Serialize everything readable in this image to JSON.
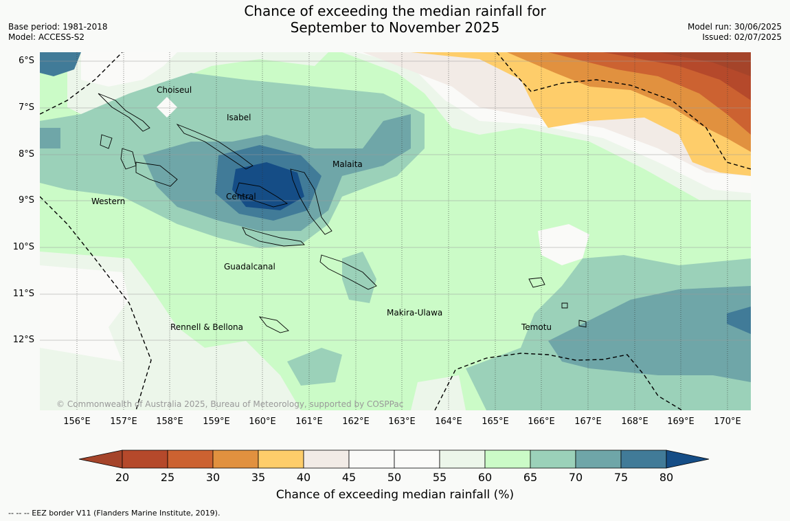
{
  "title": {
    "line1": "Chance of exceeding the median rainfall for",
    "line2": "September to November 2025"
  },
  "meta_left": {
    "base_period": "Base period: 1981-2018",
    "model": "Model: ACCESS-S2"
  },
  "meta_right": {
    "model_run": "Model run: 30/06/2025",
    "issued": "Issued: 02/07/2025"
  },
  "lat_labels": [
    "6°S",
    "7°S",
    "8°S",
    "9°S",
    "10°S",
    "11°S",
    "12°S"
  ],
  "lon_labels": [
    "156°E",
    "157°E",
    "158°E",
    "159°E",
    "160°E",
    "161°E",
    "162°E",
    "163°E",
    "164°E",
    "165°E",
    "166°E",
    "167°E",
    "168°E",
    "169°E",
    "170°E"
  ],
  "regions": [
    "Choiseul",
    "Isabel",
    "Malaita",
    "Western",
    "Central",
    "Guadalcanal",
    "Makira-Ulawa",
    "Rennell & Bellona",
    "Temotu"
  ],
  "copyright": "© Commonwealth of Australia 2025, Bureau of Meteorology, supported by COSPPac",
  "colorbar": {
    "ticks": [
      "20",
      "25",
      "30",
      "35",
      "40",
      "45",
      "50",
      "55",
      "60",
      "65",
      "70",
      "75",
      "80"
    ],
    "colors": [
      "#a5442a",
      "#b5492b",
      "#cc6231",
      "#e1913f",
      "#fecd6a",
      "#f2ebe6",
      "#fafaf8",
      "#fbfbf9",
      "#ecf6ea",
      "#cbfbc7",
      "#9bd1b9",
      "#6fa6a8",
      "#417b98",
      "#154d86"
    ],
    "label": "Chance of exceeding median rainfall (%)"
  },
  "footnote": "--  --  -- EEZ border V11 (Flanders Marine Institute, 2019)."
}
